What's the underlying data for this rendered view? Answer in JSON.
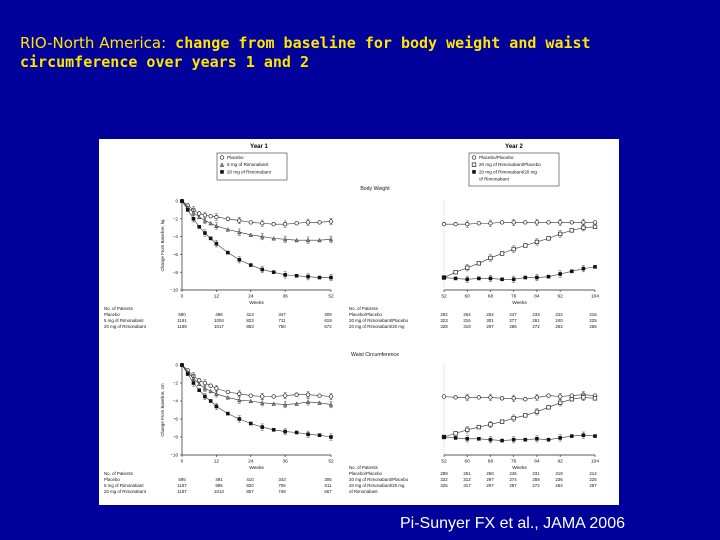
{
  "slide": {
    "title_part1": "RIO-North America:",
    "title_part2": " change from baseline for body weight and waist circumference over years 1 and 2",
    "citation": "Pi-Sunyer FX et al., JAMA 2006"
  },
  "figure": {
    "year1_label": "Year 1",
    "year2_label": "Year 2",
    "year1_legend": [
      "Placebo",
      "5 mg of Rimonabant",
      "20 mg of Rimonabant"
    ],
    "year2_legend": [
      "Placebo/Placebo",
      "20 mg of Rimonabant/Placebo",
      "20 mg of Rimonabant/20 mg",
      "of Rimonabant"
    ],
    "weeks_label": "Weeks",
    "patients_header": "No. of Patients",
    "bw_patients_y1": {
      "rows": [
        {
          "label": "Placebo",
          "values": [
            "590",
            "496",
            "413",
            "347",
            "309"
          ]
        },
        {
          "label": "5 mg of Rimonabant",
          "values": [
            "1191",
            "1004",
            "823",
            "711",
            "619"
          ]
        },
        {
          "label": "20 mg of Rimonabant",
          "values": [
            "1189",
            "1017",
            "863",
            "750",
            "672"
          ]
        }
      ]
    },
    "bw_patients_y2": {
      "rows": [
        {
          "label": "Placebo/Placebo",
          "values": [
            "292",
            "264",
            "254",
            "247",
            "233",
            "222",
            "216"
          ]
        },
        {
          "label": "20 mg of Rimonabant/Placebo",
          "values": [
            "323",
            "316",
            "301",
            "277",
            "261",
            "240",
            "225"
          ]
        },
        {
          "label": "20 mg of Rimonabant/20 mg",
          "values": [
            "328",
            "319",
            "297",
            "286",
            "272",
            "263",
            "256"
          ]
        }
      ]
    },
    "wc_patients_y1": {
      "rows": [
        {
          "label": "Placebo",
          "values": [
            "595",
            "491",
            "410",
            "343",
            "305"
          ]
        },
        {
          "label": "5 mg of Rimonabant",
          "values": [
            "1187",
            "995",
            "820",
            "706",
            "611"
          ]
        },
        {
          "label": "20 mg of Rimonabant",
          "values": [
            "1187",
            "1013",
            "857",
            "748",
            "667"
          ]
        }
      ]
    },
    "wc_patients_y2": {
      "rows": [
        {
          "label": "Placebo/Placebo",
          "values": [
            "289",
            "261",
            "250",
            "245",
            "231",
            "219",
            "214"
          ]
        },
        {
          "label": "20 mg of Rimonabant/Placebo",
          "values": [
            "322",
            "312",
            "297",
            "274",
            "258",
            "236",
            "225"
          ]
        },
        {
          "label": "20 mg of Rimonabant/20 mg",
          "values": [
            "325",
            "317",
            "297",
            "287",
            "272",
            "264",
            "257"
          ]
        },
        {
          "label": "of Rimonabant",
          "values": []
        }
      ]
    }
  },
  "chart_data": [
    {
      "type": "line",
      "title": "Body Weight",
      "panel": "Year 1",
      "xlabel": "Weeks",
      "ylabel": "Change From Baseline, kg",
      "ylim": [
        -10,
        0
      ],
      "xlim": [
        0,
        52
      ],
      "xticks": [
        0,
        12,
        24,
        36,
        52
      ],
      "yticks": [
        0,
        -2,
        -4,
        -6,
        -8,
        -10
      ],
      "x": [
        0,
        2,
        4,
        6,
        8,
        10,
        12,
        16,
        20,
        24,
        28,
        32,
        36,
        40,
        44,
        48,
        52
      ],
      "series": [
        {
          "name": "Placebo",
          "marker": "open-circle",
          "values": [
            0,
            -0.5,
            -1.0,
            -1.4,
            -1.6,
            -1.7,
            -1.8,
            -2.0,
            -2.2,
            -2.4,
            -2.5,
            -2.6,
            -2.6,
            -2.5,
            -2.4,
            -2.4,
            -2.3
          ]
        },
        {
          "name": "5 mg of Rimonabant",
          "marker": "triangle",
          "values": [
            0,
            -0.7,
            -1.3,
            -1.8,
            -2.2,
            -2.5,
            -2.8,
            -3.2,
            -3.5,
            -3.8,
            -4.0,
            -4.2,
            -4.3,
            -4.4,
            -4.4,
            -4.4,
            -4.3
          ]
        },
        {
          "name": "20 mg of Rimonabant",
          "marker": "filled-square",
          "values": [
            0,
            -1.0,
            -2.0,
            -2.9,
            -3.6,
            -4.2,
            -4.8,
            -5.8,
            -6.6,
            -7.2,
            -7.7,
            -8.0,
            -8.3,
            -8.4,
            -8.5,
            -8.6,
            -8.6
          ]
        }
      ]
    },
    {
      "type": "line",
      "title": "",
      "panel": "Year 2",
      "xlabel": "Weeks",
      "ylim": [
        -10,
        0
      ],
      "xlim": [
        52,
        104
      ],
      "xticks": [
        52,
        60,
        68,
        76,
        84,
        92,
        104
      ],
      "x": [
        52,
        56,
        60,
        64,
        68,
        72,
        76,
        80,
        84,
        88,
        92,
        96,
        100,
        104
      ],
      "series": [
        {
          "name": "Placebo/Placebo",
          "marker": "open-circle",
          "values": [
            -2.6,
            -2.6,
            -2.6,
            -2.5,
            -2.5,
            -2.4,
            -2.4,
            -2.4,
            -2.4,
            -2.4,
            -2.4,
            -2.4,
            -2.4,
            -2.4
          ]
        },
        {
          "name": "20 mg of Rimonabant/Placebo",
          "marker": "open-square",
          "values": [
            -8.6,
            -8.0,
            -7.5,
            -7.0,
            -6.4,
            -5.9,
            -5.4,
            -5.0,
            -4.6,
            -4.2,
            -3.7,
            -3.3,
            -3.0,
            -2.9
          ]
        },
        {
          "name": "20 mg of Rimonabant/20 mg of Rimonabant",
          "marker": "filled-square",
          "values": [
            -8.6,
            -8.7,
            -8.8,
            -8.7,
            -8.7,
            -8.8,
            -8.8,
            -8.6,
            -8.6,
            -8.5,
            -8.2,
            -7.9,
            -7.6,
            -7.4
          ]
        }
      ]
    },
    {
      "type": "line",
      "title": "Waist Circumference",
      "panel": "Year 1",
      "xlabel": "Weeks",
      "ylabel": "Change From Baseline, cm",
      "ylim": [
        -10,
        0
      ],
      "xlim": [
        0,
        52
      ],
      "xticks": [
        0,
        12,
        24,
        36,
        52
      ],
      "yticks": [
        0,
        -2,
        -4,
        -6,
        -8,
        -10
      ],
      "x": [
        0,
        2,
        4,
        6,
        8,
        10,
        12,
        16,
        20,
        24,
        28,
        32,
        36,
        40,
        44,
        48,
        52
      ],
      "series": [
        {
          "name": "Placebo",
          "marker": "open-circle",
          "values": [
            0,
            -0.6,
            -1.2,
            -1.7,
            -2.0,
            -2.3,
            -2.6,
            -3.0,
            -3.2,
            -3.4,
            -3.5,
            -3.5,
            -3.4,
            -3.3,
            -3.3,
            -3.4,
            -3.5
          ]
        },
        {
          "name": "5 mg of Rimonabant",
          "marker": "triangle",
          "values": [
            0,
            -0.8,
            -1.5,
            -2.1,
            -2.6,
            -2.9,
            -3.2,
            -3.6,
            -3.9,
            -4.0,
            -4.2,
            -4.3,
            -4.4,
            -4.3,
            -4.1,
            -4.2,
            -4.4
          ]
        },
        {
          "name": "20 mg of Rimonabant",
          "marker": "filled-square",
          "values": [
            0,
            -1.0,
            -2.0,
            -2.8,
            -3.5,
            -4.0,
            -4.6,
            -5.4,
            -6.0,
            -6.5,
            -6.9,
            -7.2,
            -7.4,
            -7.5,
            -7.7,
            -7.8,
            -8.0
          ]
        }
      ]
    },
    {
      "type": "line",
      "title": "",
      "panel": "Year 2",
      "xlabel": "Weeks",
      "ylim": [
        -10,
        0
      ],
      "xlim": [
        52,
        104
      ],
      "xticks": [
        52,
        60,
        68,
        76,
        84,
        92,
        104
      ],
      "x": [
        52,
        56,
        60,
        64,
        68,
        72,
        76,
        80,
        84,
        88,
        92,
        96,
        100,
        104
      ],
      "series": [
        {
          "name": "Placebo/Placebo",
          "marker": "open-circle",
          "values": [
            -3.5,
            -3.6,
            -3.6,
            -3.6,
            -3.6,
            -3.7,
            -3.7,
            -3.8,
            -3.6,
            -3.4,
            -3.5,
            -3.4,
            -3.3,
            -3.4
          ]
        },
        {
          "name": "20 mg of Rimonabant/Placebo",
          "marker": "open-square",
          "values": [
            -8.0,
            -7.6,
            -7.2,
            -6.9,
            -6.6,
            -6.3,
            -5.9,
            -5.6,
            -5.2,
            -4.7,
            -4.2,
            -3.8,
            -3.6,
            -3.7
          ]
        },
        {
          "name": "20 mg of Rimonabant/20 mg of Rimonabant",
          "marker": "filled-square",
          "values": [
            -8.0,
            -8.1,
            -8.2,
            -8.2,
            -8.3,
            -8.4,
            -8.3,
            -8.3,
            -8.2,
            -8.3,
            -8.1,
            -7.9,
            -7.8,
            -7.9
          ]
        }
      ]
    }
  ]
}
